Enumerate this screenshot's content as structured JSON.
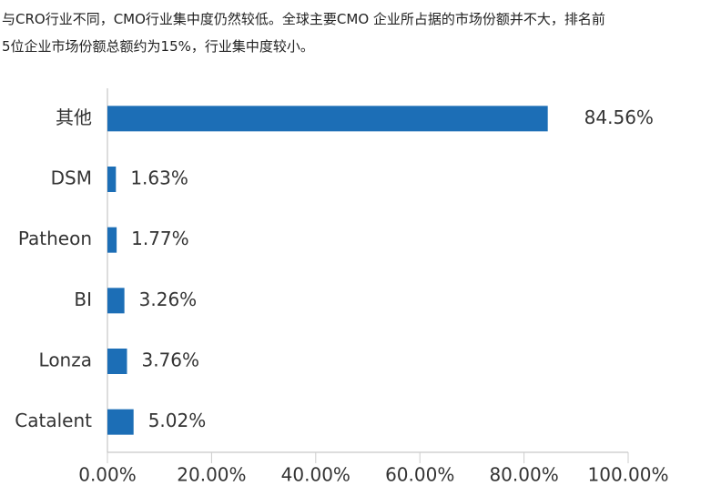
{
  "intro": [
    "与CRO行业不同，CMO行业集中度仍然较低。全球主要CMO 企业所占据的市场份额并不大，排名前",
    "5位企业市场份额总额约为15%，行业集中度较小。"
  ],
  "chart_data": {
    "type": "barh",
    "categories": [
      "其他",
      "DSM",
      "Patheon",
      "BI",
      "Lonza",
      "Catalent"
    ],
    "values": [
      84.56,
      1.63,
      1.77,
      3.26,
      3.76,
      5.02
    ],
    "value_labels": [
      "84.56%",
      "1.63%",
      "1.77%",
      "3.26%",
      "3.76%",
      "5.02%"
    ],
    "color": "#1c6eb6",
    "xlim": [
      0,
      100
    ],
    "xticks": [
      {
        "value": 0,
        "label": "0.00%"
      },
      {
        "value": 20,
        "label": "20.00%"
      },
      {
        "value": 40,
        "label": "40.00%"
      },
      {
        "value": 60,
        "label": "60.00%"
      },
      {
        "value": 80,
        "label": "80.00%"
      },
      {
        "value": 100,
        "label": "100.00%"
      }
    ]
  }
}
